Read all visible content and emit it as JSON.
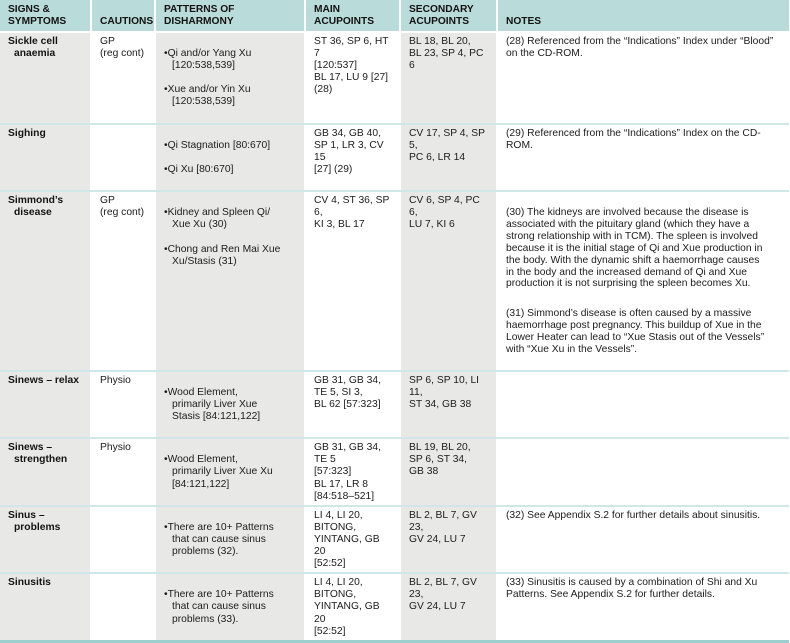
{
  "colors": {
    "header_bg": "#b9dbda",
    "stripe_bg": "#e8e8e7",
    "row_divider": "#cfe7e6",
    "bottom_border": "#9ccfce"
  },
  "table": {
    "headers": {
      "signs": "SIGNS &\nSYMPTOMS",
      "cautions": "CAUTIONS",
      "patterns": "PATTERNS OF\nDISHARMONY",
      "main": "MAIN\nACUPOINTS",
      "secondary": "SECONDARY\nACUPOINTS",
      "notes": "NOTES"
    },
    "rows": [
      {
        "signs": "Sickle cell\nanaemia",
        "cautions": "GP\n(reg cont)",
        "patterns": [
          "Qi and/or Yang Xu\n[120:538,539]",
          "Xue and/or Yin Xu\n[120:538,539]"
        ],
        "main": "ST 36, SP 6, HT 7\n[120:537]\nBL 17, LU 9 [27]\n(28)",
        "secondary": "BL 18, BL 20,\nBL 23, SP 4, PC 6",
        "notes": [
          "(28) Referenced from the “Indications” Index under “Blood”\non the CD-ROM."
        ]
      },
      {
        "signs": "Sighing",
        "cautions": "",
        "patterns": [
          "Qi Stagnation [80:670]",
          "Qi Xu [80:670]"
        ],
        "main": "GB 34, GB 40,\nSP 1, LR 3, CV 15\n[27] (29)",
        "secondary": "CV 17, SP 4, SP 5,\nPC 6, LR 14",
        "notes": [
          "(29) Referenced from the “Indications” Index on the CD-\nROM."
        ]
      },
      {
        "signs": "Simmond’s\ndisease",
        "cautions": "GP\n(reg cont)",
        "patterns": [
          "Kidney and Spleen Qi/\nXue Xu (30)",
          "Chong and Ren Mai Xue\nXu/Stasis (31)"
        ],
        "main": "CV 4, ST 36, SP 6,\nKI 3, BL 17",
        "secondary": "CV 6, SP 4, PC 6,\nLU 7, KI 6",
        "notes": [
          "(30) The kidneys are involved because the disease is\nassociated with the pituitary gland (which they have a\nstrong relationship with in TCM). The spleen is involved\nbecause it is the initial stage of Qi and Xue production in\nthe body. With the dynamic shift a haemorrhage causes\nin the body and the increased demand of Qi and Xue\nproduction it is not surprising the spleen becomes Xu.",
          "(31) Simmond’s disease is often caused by a massive\nhaemorrhage post pregnancy. This buildup of Xue in the\nLower Heater can lead to “Xue Stasis out of the Vessels”\nwith “Xue Xu in the Vessels”."
        ]
      },
      {
        "signs": "Sinews – relax",
        "cautions": "Physio",
        "patterns": [
          "Wood Element,\nprimarily Liver Xue\nStasis [84:121,122]"
        ],
        "main": "GB 31, GB 34,\nTE 5, SI 3,\nBL 62 [57:323]",
        "secondary": "SP 6, SP 10, LI 11,\nST 34, GB 38",
        "notes": []
      },
      {
        "signs": "Sinews –\nstrengthen",
        "cautions": "Physio",
        "patterns": [
          "Wood Element,\nprimarily Liver Xue Xu\n[84:121,122]"
        ],
        "main": "GB 31, GB 34, TE 5\n[57:323]\nBL 17, LR 8\n[84:518–521]",
        "secondary": "BL 19, BL 20,\nSP 6, ST 34,\nGB 38",
        "notes": []
      },
      {
        "signs": "Sinus –\nproblems",
        "cautions": "",
        "patterns": [
          "There are 10+ Patterns\nthat can cause sinus\nproblems (32)."
        ],
        "main": "LI 4, LI 20,\nBITONG,\nYINTANG, GB 20\n[52:52]",
        "secondary": "BL 2, BL 7, GV 23,\nGV 24, LU 7",
        "notes": [
          "(32) See Appendix S.2 for further details about sinusitis."
        ]
      },
      {
        "signs": "Sinusitis",
        "cautions": "",
        "patterns": [
          "There are 10+ Patterns\nthat can cause sinus\nproblems (33)."
        ],
        "main": "LI 4, LI 20,\nBITONG,\nYINTANG, GB 20\n[52:52]",
        "secondary": "BL 2, BL 7, GV 23,\nGV 24, LU 7",
        "notes": [
          "(33) Sinusitis is caused by a combination of Shi and Xu\nPatterns. See Appendix S.2 for further details."
        ]
      }
    ]
  }
}
